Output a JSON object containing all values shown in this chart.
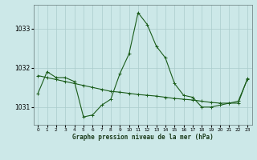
{
  "title": "Graphe pression niveau de la mer (hPa)",
  "background_color": "#cce8e8",
  "grid_color": "#aacccc",
  "line_color": "#1a5c1a",
  "marker_color": "#1a5c1a",
  "xlim": [
    -0.5,
    23.5
  ],
  "ylim": [
    1030.55,
    1033.6
  ],
  "yticks": [
    1031,
    1032,
    1033
  ],
  "xticks": [
    0,
    1,
    2,
    3,
    4,
    5,
    6,
    7,
    8,
    9,
    10,
    11,
    12,
    13,
    14,
    15,
    16,
    17,
    18,
    19,
    20,
    21,
    22,
    23
  ],
  "series1_x": [
    0,
    1,
    2,
    3,
    4,
    5,
    6,
    7,
    8,
    9,
    10,
    11,
    12,
    13,
    14,
    15,
    16,
    17,
    18,
    19,
    20,
    21,
    22,
    23
  ],
  "series1_y": [
    1031.35,
    1031.9,
    1031.75,
    1031.75,
    1031.65,
    1030.75,
    1030.8,
    1031.05,
    1031.2,
    1031.85,
    1032.35,
    1033.4,
    1033.1,
    1032.55,
    1032.25,
    1031.6,
    1031.3,
    1031.25,
    1031.0,
    1031.0,
    1031.05,
    1031.1,
    1031.15,
    1031.7
  ],
  "series2_x": [
    0,
    1,
    2,
    3,
    4,
    5,
    6,
    7,
    8,
    9,
    10,
    11,
    12,
    13,
    14,
    15,
    16,
    17,
    18,
    19,
    20,
    21,
    22,
    23
  ],
  "series2_y": [
    1031.8,
    1031.75,
    1031.7,
    1031.65,
    1031.6,
    1031.55,
    1031.5,
    1031.45,
    1031.4,
    1031.38,
    1031.35,
    1031.32,
    1031.3,
    1031.28,
    1031.25,
    1031.22,
    1031.2,
    1031.18,
    1031.15,
    1031.12,
    1031.1,
    1031.1,
    1031.1,
    1031.72
  ]
}
